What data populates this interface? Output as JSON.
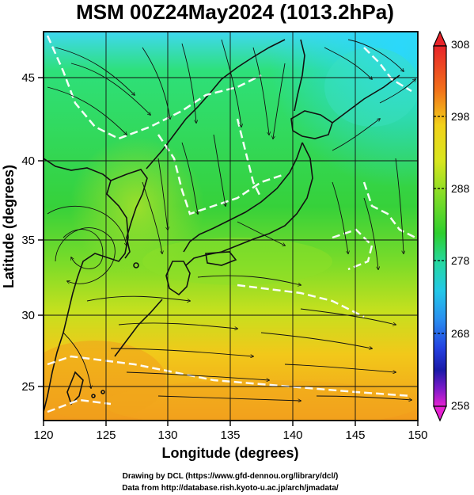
{
  "title": "MSM 00Z24May2024 (1013.2hPa)",
  "xlabel": "Longitude (degrees)",
  "ylabel": "Latitude  (degrees)",
  "x_ticks": [
    "120",
    "125",
    "130",
    "135",
    "140",
    "145",
    "150"
  ],
  "y_ticks": [
    "25",
    "30",
    "35",
    "40",
    "45"
  ],
  "colorbar": {
    "labels": [
      "308",
      "298",
      "288",
      "278",
      "268",
      "258"
    ]
  },
  "credits": {
    "line1": "Drawing by DCL (https://www.gfd-dennou.org/library/dcl/)",
    "line2": "Data from http://database.rish.kyoto-u.ac.jp/arch/jmadata/"
  },
  "chart_data": {
    "type": "heatmap",
    "field": "temperature with streamlines",
    "x_range": [
      120,
      150
    ],
    "y_range": [
      22.4,
      47.6
    ],
    "color_range": [
      258,
      308
    ],
    "gridlines": true
  }
}
